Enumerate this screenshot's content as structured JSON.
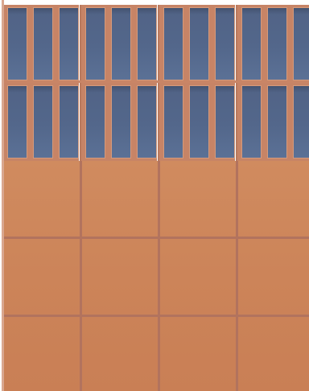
{
  "facade": {
    "window_rows": 2,
    "bays_per_row": 4,
    "panes_per_bay": 3,
    "panel_rows": 3,
    "panel_columns": 4
  },
  "colors": {
    "glass": "#53678b",
    "mullion": "#c78466",
    "panel": "#cc8459",
    "joint": "#b2735e"
  }
}
